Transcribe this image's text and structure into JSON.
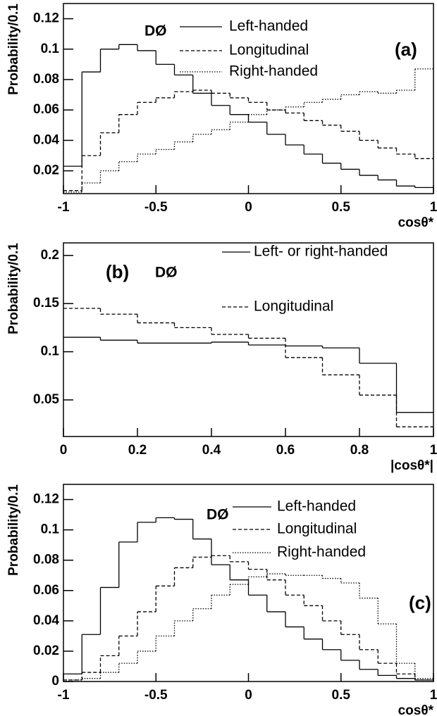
{
  "chart_data": [
    {
      "type": "histogram",
      "panel_label": "(a)",
      "annotation": "DØ",
      "xlabel": "cosθ*",
      "ylabel": "Probability/0.1",
      "bins": [
        -1,
        -0.9,
        -0.8,
        -0.7,
        -0.6,
        -0.5,
        -0.4,
        -0.3,
        -0.2,
        -0.1,
        0,
        0.1,
        0.2,
        0.3,
        0.4,
        0.5,
        0.6,
        0.7,
        0.8,
        0.9,
        1
      ],
      "xlim": [
        -1,
        1
      ],
      "xticks": [
        -1,
        -0.5,
        0,
        0.5,
        1
      ],
      "ylim": [
        0.005,
        0.13
      ],
      "yticks": [
        0.02,
        0.04,
        0.06,
        0.08,
        0.1,
        0.12
      ],
      "series": [
        {
          "name": "Left-handed",
          "color": "#000000",
          "dash": "solid",
          "values": [
            0.023,
            0.085,
            0.1,
            0.103,
            0.099,
            0.09,
            0.083,
            0.071,
            0.063,
            0.057,
            0.052,
            0.044,
            0.037,
            0.031,
            0.025,
            0.021,
            0.017,
            0.014,
            0.01,
            0.009
          ]
        },
        {
          "name": "Longitudinal",
          "color": "#000000",
          "dash": "dashed",
          "values": [
            0.007,
            0.03,
            0.045,
            0.057,
            0.065,
            0.068,
            0.072,
            0.073,
            0.071,
            0.068,
            0.065,
            0.06,
            0.058,
            0.053,
            0.05,
            0.046,
            0.04,
            0.035,
            0.031,
            0.028
          ]
        },
        {
          "name": "Right-handed",
          "color": "#000000",
          "dash": "dotted",
          "values": [
            0.006,
            0.012,
            0.02,
            0.026,
            0.031,
            0.034,
            0.039,
            0.044,
            0.047,
            0.052,
            0.057,
            0.06,
            0.062,
            0.065,
            0.067,
            0.07,
            0.072,
            0.071,
            0.073,
            0.087
          ]
        }
      ]
    },
    {
      "type": "histogram",
      "panel_label": "(b)",
      "annotation": "DØ",
      "xlabel": "|cosθ*|",
      "ylabel": "Probability/0.1",
      "bins": [
        0,
        0.1,
        0.2,
        0.3,
        0.4,
        0.5,
        0.6,
        0.7,
        0.8,
        0.9,
        1
      ],
      "xlim": [
        0,
        1
      ],
      "xticks": [
        0,
        0.2,
        0.4,
        0.6,
        0.8,
        1
      ],
      "ylim": [
        0.012,
        0.213
      ],
      "yticks": [
        0.05,
        0.1,
        0.15,
        0.2
      ],
      "series": [
        {
          "name": "Left- or right-handed",
          "color": "#000000",
          "dash": "solid",
          "values": [
            0.115,
            0.112,
            0.109,
            0.109,
            0.11,
            0.107,
            0.106,
            0.104,
            0.088,
            0.037
          ]
        },
        {
          "name": "Longitudinal",
          "color": "#000000",
          "dash": "dashed",
          "values": [
            0.145,
            0.139,
            0.13,
            0.125,
            0.118,
            0.114,
            0.094,
            0.076,
            0.055,
            0.022
          ]
        }
      ]
    },
    {
      "type": "histogram",
      "panel_label": "(c)",
      "annotation": "DØ",
      "xlabel": "cosθ*",
      "ylabel": "Probability/0.1",
      "bins": [
        -1,
        -0.9,
        -0.8,
        -0.7,
        -0.6,
        -0.5,
        -0.4,
        -0.3,
        -0.2,
        -0.1,
        0,
        0.1,
        0.2,
        0.3,
        0.4,
        0.5,
        0.6,
        0.7,
        0.8,
        0.9,
        1
      ],
      "xlim": [
        -1,
        1
      ],
      "xticks": [
        -1,
        -0.5,
        0,
        0.5,
        1
      ],
      "ylim": [
        0,
        0.13
      ],
      "yticks": [
        0,
        0.02,
        0.04,
        0.06,
        0.08,
        0.1,
        0.12
      ],
      "series": [
        {
          "name": "Left-handed",
          "color": "#000000",
          "dash": "solid",
          "values": [
            0.005,
            0.031,
            0.062,
            0.092,
            0.105,
            0.108,
            0.107,
            0.094,
            0.077,
            0.067,
            0.057,
            0.046,
            0.036,
            0.028,
            0.021,
            0.014,
            0.008,
            0.004,
            0.002,
            0.001
          ]
        },
        {
          "name": "Longitudinal",
          "color": "#000000",
          "dash": "dashed",
          "values": [
            0.001,
            0.006,
            0.017,
            0.03,
            0.046,
            0.063,
            0.075,
            0.082,
            0.083,
            0.079,
            0.074,
            0.067,
            0.057,
            0.05,
            0.04,
            0.031,
            0.021,
            0.012,
            0.005,
            0.001
          ]
        },
        {
          "name": "Right-handed",
          "color": "#000000",
          "dash": "dotted",
          "values": [
            0.001,
            0.002,
            0.006,
            0.012,
            0.02,
            0.03,
            0.04,
            0.048,
            0.057,
            0.064,
            0.069,
            0.071,
            0.07,
            0.07,
            0.068,
            0.065,
            0.055,
            0.038,
            0.012,
            0.002
          ]
        }
      ]
    }
  ]
}
